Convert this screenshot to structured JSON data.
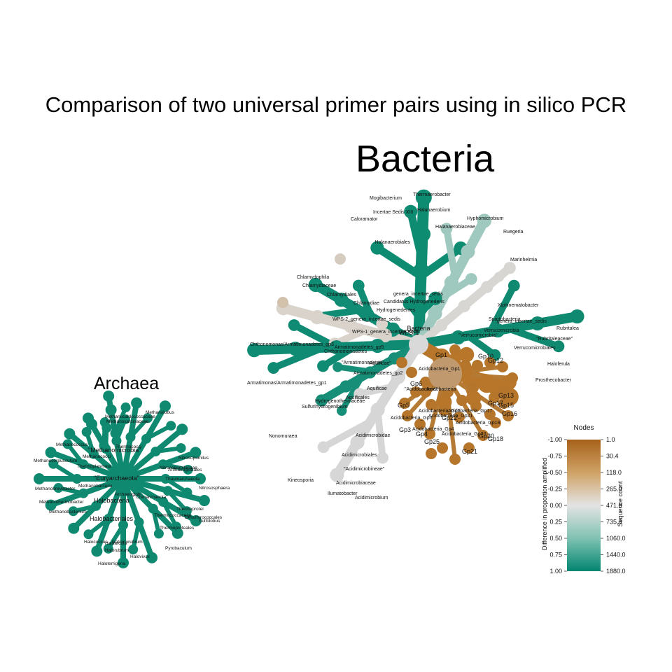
{
  "title": "Comparison of two universal primer pairs using in silico PCR",
  "colors": {
    "teal": "#0d8a74",
    "mid": "#dcdcdc",
    "brown": "#b8741f"
  },
  "bacteria": {
    "title": "Bacteria",
    "root_label": "Bacteria",
    "branches": [
      {
        "color": "#0e8c72",
        "labels": [
          "Halanaerobiales",
          "Halanaerobiaceae",
          "Halanaerobium",
          "Thermaerobacter",
          "Mogibacterium",
          "Incertae Sedis XIII",
          "Caloramator"
        ]
      },
      {
        "color": "#9fc8be",
        "labels": [
          "Hyphomicrobium",
          "Ruegeria"
        ]
      },
      {
        "color": "#d8d6d2",
        "labels": [
          "Marinhelmia"
        ]
      },
      {
        "color": "#108b74",
        "labels": [
          "Chlamydophila",
          "Chlamydiaceae",
          "Chlamydiales",
          "Chlamydiae"
        ]
      },
      {
        "color": "#d9d3cc",
        "labels": [
          "genera_incertae_sedis",
          "Candidatus Hydrogenedens",
          "Hydrogenedentes",
          "WPS-2_genera_incertae_sedis",
          "WPS-1_genera_incertae_sedis",
          "WPS-1"
        ]
      },
      {
        "color": "#0f8a71",
        "labels": [
          "Spartobacteria",
          "genera_incertae_sedis",
          "\"Verrucomicrobia\"",
          "Verrucomicrobiales",
          "Verrucomicrobia",
          "Xiphinematobacter",
          "Rubritalea",
          "\"Rubritaleaceae\"",
          "Prosthecobacter",
          "Haloferula"
        ]
      },
      {
        "color": "#0f8a73",
        "labels": [
          "\"Armatimonadetes\"",
          "Chthonomonadetes",
          "Chthonomonas/Armatimonadetes_gp3",
          "Armatimonadetes_gp5",
          "Armatimonadetes_gp2",
          "Armatimonas/Armatimonadetes_gp1"
        ]
      },
      {
        "color": "#178e77",
        "labels": [
          "\"Aquificae\"",
          "Aquificae",
          "Aquificales",
          "Hydrogenothermaceae",
          "Sulfurihydrogenibium"
        ]
      },
      {
        "color": "#d6d6d6",
        "labels": [
          "Acidimicrobidae",
          "Acidimicrobiales",
          "\"Acidimicrobineae\"",
          "Acidimicrobiaceae",
          "Ilumatobacter",
          "Acidimicrobium",
          "Nonomuraea",
          "Kineosporia"
        ]
      },
      {
        "color": "#b8762a",
        "labels": [
          "\"Acidobacteria\"",
          "Acidobacteria",
          "Acidobacteria_Gp1",
          "Gp1",
          "Gp3",
          "Gp4",
          "Gp6",
          "Gp10",
          "Gp12",
          "Gp13",
          "Gp15",
          "Gp16",
          "Gp17",
          "Gp18",
          "Gp20",
          "Gp21",
          "Gp22",
          "Gp5",
          "Gp25",
          "Acidobacteria_Gp3",
          "Acidobacteria_Gp4",
          "Acidobacteria_Gp6",
          "Acidobacteria_Gp17",
          "Acidobacteria_Gp18",
          "Acidobacteria_Gp20",
          "Acidobacteria_Gp21"
        ]
      }
    ]
  },
  "archaea": {
    "title": "Archaea",
    "labels": [
      "\"Euryarchaeota\"",
      "\"Methanomicrobia\"",
      "Halobacteria",
      "Halobacteriales",
      "Thermococci",
      "\"Crenarchaeota\"",
      "Thermoprotei",
      "Nitrosopumilus",
      "Thaumarchaeota",
      "Archaeoglobi",
      "Methanobacteria",
      "Methanococci",
      "Thermoplasmata",
      "Methanosarcinaceae",
      "Methanolobus",
      "Methanococcus",
      "Methanobacterium",
      "Halorubrum",
      "Haloterrigena",
      "Pyrobaculum",
      "Thermoproteales",
      "Thermococcaceae",
      "Desulfurococcales",
      "Sulfolobus",
      "Halococcus",
      "Methanocaldococcaceae",
      "Methanothermobacter",
      "Methanobrevibacter",
      "Methanocorpusculum",
      "Nitrosopumilaceae",
      "Archaeoglobales",
      "Nitrososphaera",
      "Natronorubrum",
      "Haloarcula",
      "Halovivax"
    ]
  },
  "legend": {
    "title": "Nodes",
    "color_axis_label": "Difference in proportion amplified",
    "size_axis_label": "Sequence count",
    "color_ticks": [
      "-1.00",
      "-0.75",
      "-0.50",
      "-0.25",
      "0.00",
      "0.25",
      "0.50",
      "0.75",
      "1.00"
    ],
    "size_ticks": [
      "1.0",
      "30.4",
      "118.0",
      "265.0",
      "471.0",
      "735.0",
      "1060.0",
      "1440.0",
      "1880.0"
    ]
  }
}
